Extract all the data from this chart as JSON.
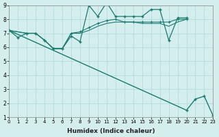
{
  "bg_color": "#d4eeee",
  "grid_color": "#aed8d8",
  "line_color": "#1a7a6e",
  "xlabel": "Humidex (Indice chaleur)",
  "xlim": [
    0,
    23
  ],
  "ylim": [
    1,
    9
  ],
  "xticks": [
    0,
    1,
    2,
    3,
    4,
    5,
    6,
    7,
    8,
    9,
    10,
    11,
    12,
    13,
    14,
    15,
    16,
    17,
    18,
    19,
    20,
    21,
    22,
    23
  ],
  "yticks": [
    1,
    2,
    3,
    4,
    5,
    6,
    7,
    8,
    9
  ],
  "series1_x": [
    0,
    1,
    2,
    3,
    4,
    5,
    6,
    7,
    8,
    9,
    10,
    11,
    12,
    13,
    14,
    15,
    16,
    17,
    18,
    19,
    20
  ],
  "series1_y": [
    7.2,
    6.7,
    7.0,
    7.0,
    6.5,
    5.9,
    5.9,
    6.8,
    6.4,
    9.0,
    8.2,
    9.2,
    8.2,
    8.2,
    8.2,
    8.2,
    8.7,
    8.7,
    6.5,
    8.1,
    8.1
  ],
  "series2_x": [
    0,
    2,
    3,
    4,
    5,
    6,
    7,
    8,
    9,
    10,
    11,
    12,
    13,
    14,
    15,
    16,
    17,
    18,
    19,
    20
  ],
  "series2_y": [
    7.2,
    7.0,
    7.0,
    6.5,
    5.9,
    5.9,
    7.0,
    7.1,
    7.4,
    7.7,
    7.9,
    8.0,
    7.8,
    7.8,
    7.8,
    7.8,
    7.8,
    7.8,
    8.0,
    8.0
  ],
  "series3_x": [
    0,
    2,
    3,
    4,
    5,
    6,
    7,
    8,
    9,
    10,
    11,
    12,
    13,
    14,
    15,
    16,
    17,
    18,
    19,
    20
  ],
  "series3_y": [
    7.2,
    7.0,
    7.0,
    6.5,
    5.9,
    5.9,
    7.0,
    7.0,
    7.2,
    7.5,
    7.7,
    7.8,
    7.8,
    7.8,
    7.7,
    7.7,
    7.7,
    7.5,
    7.8,
    8.0
  ],
  "series4_x": [
    0,
    20,
    21,
    22,
    23
  ],
  "series4_y": [
    7.2,
    1.5,
    2.3,
    2.5,
    1.1
  ]
}
